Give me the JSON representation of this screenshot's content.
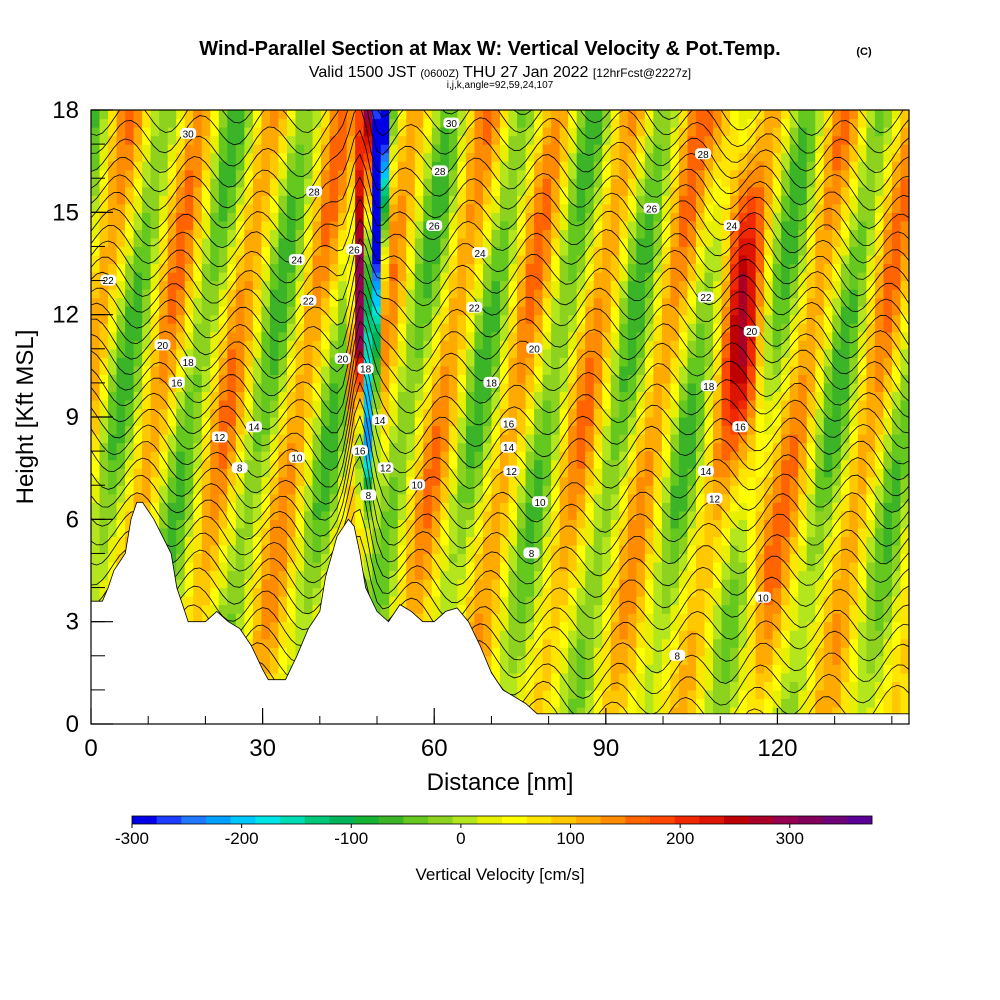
{
  "chart_data": {
    "type": "heatmap",
    "title": "Wind-Parallel Section at Max W: Vertical Velocity & Pot.Temp.",
    "title_mark": "(C)",
    "subtitle_parts": [
      "Valid 1500 JST",
      "(0600Z)",
      "THU 27 Jan 2022",
      "[12hrFcst@2227z]"
    ],
    "subtitle2": "i,j,k,angle=92,59,24,107",
    "xlabel": "Distance [nm]",
    "ylabel": "Height [Kft MSL]",
    "xlim": [
      0,
      143
    ],
    "ylim": [
      0,
      18
    ],
    "x_ticks": [
      0,
      30,
      60,
      90,
      120
    ],
    "x_minor_step": 10,
    "y_ticks": [
      0,
      3,
      6,
      9,
      12,
      15,
      18
    ],
    "y_minor_step": 1,
    "colorbar": {
      "label": "Vertical Velocity [cm/s]",
      "range": [
        -300,
        375
      ],
      "ticks": [
        -300,
        -200,
        -100,
        0,
        100,
        200,
        300
      ],
      "colors": [
        "#0000e6",
        "#1e3cff",
        "#1f78ff",
        "#00a0ff",
        "#00c8ff",
        "#00e6e6",
        "#00dcb4",
        "#00c878",
        "#00b45a",
        "#14b432",
        "#3cb428",
        "#64c81e",
        "#8cd21e",
        "#b4e61e",
        "#e6f000",
        "#ffff00",
        "#ffe600",
        "#ffc800",
        "#ffaa00",
        "#ff8c00",
        "#ff6400",
        "#ff4600",
        "#f02800",
        "#dc1400",
        "#be0000",
        "#aa0028",
        "#960050",
        "#82005a",
        "#6e0078",
        "#5a0096"
      ]
    },
    "terrain_top": [
      {
        "x": 0,
        "y": 3.6
      },
      {
        "x": 2,
        "y": 3.6
      },
      {
        "x": 3,
        "y": 4.0
      },
      {
        "x": 4,
        "y": 4.5
      },
      {
        "x": 6,
        "y": 5.0
      },
      {
        "x": 7,
        "y": 6.0
      },
      {
        "x": 8,
        "y": 6.5
      },
      {
        "x": 9,
        "y": 6.5
      },
      {
        "x": 11,
        "y": 6.0
      },
      {
        "x": 14,
        "y": 5.0
      },
      {
        "x": 15,
        "y": 4.0
      },
      {
        "x": 16,
        "y": 3.5
      },
      {
        "x": 17,
        "y": 3.0
      },
      {
        "x": 20,
        "y": 3.0
      },
      {
        "x": 22,
        "y": 3.3
      },
      {
        "x": 24,
        "y": 3.0
      },
      {
        "x": 26,
        "y": 2.8
      },
      {
        "x": 28,
        "y": 2.3
      },
      {
        "x": 30,
        "y": 1.6
      },
      {
        "x": 31,
        "y": 1.3
      },
      {
        "x": 34,
        "y": 1.3
      },
      {
        "x": 36,
        "y": 2.0
      },
      {
        "x": 38,
        "y": 2.8
      },
      {
        "x": 40,
        "y": 3.3
      },
      {
        "x": 41,
        "y": 4.3
      },
      {
        "x": 43,
        "y": 5.5
      },
      {
        "x": 45,
        "y": 6.0
      },
      {
        "x": 46,
        "y": 5.8
      },
      {
        "x": 47,
        "y": 5.0
      },
      {
        "x": 48,
        "y": 4.0
      },
      {
        "x": 50,
        "y": 3.3
      },
      {
        "x": 52,
        "y": 3.0
      },
      {
        "x": 54,
        "y": 3.5
      },
      {
        "x": 56,
        "y": 3.3
      },
      {
        "x": 58,
        "y": 3.0
      },
      {
        "x": 60,
        "y": 3.0
      },
      {
        "x": 62,
        "y": 3.3
      },
      {
        "x": 64,
        "y": 3.4
      },
      {
        "x": 66,
        "y": 3.0
      },
      {
        "x": 68,
        "y": 2.3
      },
      {
        "x": 70,
        "y": 1.5
      },
      {
        "x": 72,
        "y": 1.0
      },
      {
        "x": 76,
        "y": 0.6
      },
      {
        "x": 78,
        "y": 0.3
      },
      {
        "x": 143,
        "y": 0.3
      }
    ],
    "contour_labels": [
      {
        "text": "30",
        "x": 17,
        "y": 17.3
      },
      {
        "text": "28",
        "x": 39,
        "y": 15.6
      },
      {
        "text": "24",
        "x": 36,
        "y": 13.6
      },
      {
        "text": "22",
        "x": 38,
        "y": 12.4
      },
      {
        "text": "22",
        "x": 3,
        "y": 13.0
      },
      {
        "text": "26",
        "x": 46,
        "y": 13.9
      },
      {
        "text": "20",
        "x": 12.5,
        "y": 11.1
      },
      {
        "text": "18",
        "x": 17,
        "y": 10.6
      },
      {
        "text": "16",
        "x": 15,
        "y": 10.0
      },
      {
        "text": "12",
        "x": 22.5,
        "y": 8.4
      },
      {
        "text": "14",
        "x": 28.5,
        "y": 8.7
      },
      {
        "text": "10",
        "x": 36,
        "y": 7.8
      },
      {
        "text": "8",
        "x": 26,
        "y": 7.5
      },
      {
        "text": "20",
        "x": 44,
        "y": 10.7
      },
      {
        "text": "18",
        "x": 48,
        "y": 10.4
      },
      {
        "text": "14",
        "x": 50.5,
        "y": 8.9
      },
      {
        "text": "16",
        "x": 47,
        "y": 8.0
      },
      {
        "text": "12",
        "x": 51.5,
        "y": 7.5
      },
      {
        "text": "8",
        "x": 48.5,
        "y": 6.7
      },
      {
        "text": "10",
        "x": 57,
        "y": 7.0
      },
      {
        "text": "30",
        "x": 63,
        "y": 17.6
      },
      {
        "text": "28",
        "x": 61,
        "y": 16.2
      },
      {
        "text": "26",
        "x": 60,
        "y": 14.6
      },
      {
        "text": "24",
        "x": 68,
        "y": 13.8
      },
      {
        "text": "22",
        "x": 67,
        "y": 12.2
      },
      {
        "text": "20",
        "x": 77.5,
        "y": 11.0
      },
      {
        "text": "18",
        "x": 70,
        "y": 10.0
      },
      {
        "text": "16",
        "x": 73,
        "y": 8.8
      },
      {
        "text": "14",
        "x": 73,
        "y": 8.1
      },
      {
        "text": "12",
        "x": 73.5,
        "y": 7.4
      },
      {
        "text": "10",
        "x": 78.5,
        "y": 6.5
      },
      {
        "text": "8",
        "x": 77,
        "y": 5.0
      },
      {
        "text": "28",
        "x": 107,
        "y": 16.7
      },
      {
        "text": "26",
        "x": 98,
        "y": 15.1
      },
      {
        "text": "24",
        "x": 112,
        "y": 14.6
      },
      {
        "text": "22",
        "x": 107.5,
        "y": 12.5
      },
      {
        "text": "20",
        "x": 115.5,
        "y": 11.5
      },
      {
        "text": "18",
        "x": 108,
        "y": 9.9
      },
      {
        "text": "16",
        "x": 113.5,
        "y": 8.7
      },
      {
        "text": "14",
        "x": 107.5,
        "y": 7.4
      },
      {
        "text": "12",
        "x": 109,
        "y": 6.6
      },
      {
        "text": "10",
        "x": 117.5,
        "y": 3.7
      },
      {
        "text": "8",
        "x": 102.5,
        "y": 2.0
      }
    ]
  }
}
